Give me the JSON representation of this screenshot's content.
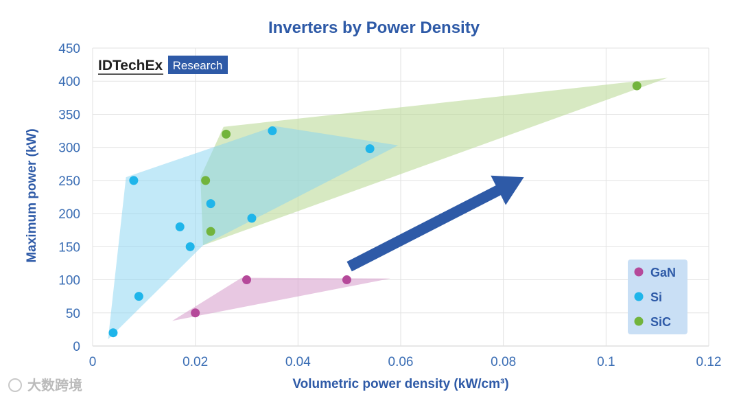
{
  "chart_data": {
    "type": "scatter",
    "title": "Inverters by Power Density",
    "xlabel": "Volumetric power density (kW/cm³)",
    "ylabel": "Maximum power (kW)",
    "xlim": [
      0,
      0.12
    ],
    "ylim": [
      0,
      450
    ],
    "x_ticks": [
      0,
      0.02,
      0.04,
      0.06,
      0.08,
      0.1,
      0.12
    ],
    "x_tick_labels": [
      "0",
      "0.02",
      "0.04",
      "0.06",
      "0.08",
      "0.1",
      "0.12"
    ],
    "y_ticks": [
      0,
      50,
      100,
      150,
      200,
      250,
      300,
      350,
      400,
      450
    ],
    "y_tick_labels": [
      "0",
      "50",
      "100",
      "150",
      "200",
      "250",
      "300",
      "350",
      "400",
      "450"
    ],
    "grid": true,
    "legend_position": "bottom-right",
    "series": [
      {
        "name": "GaN",
        "color": "#b5499a",
        "fill": "#d9a4cf",
        "points": [
          [
            0.02,
            50
          ],
          [
            0.03,
            100
          ],
          [
            0.0495,
            100
          ]
        ],
        "region": [
          [
            0.0155,
            38
          ],
          [
            0.029,
            103
          ],
          [
            0.058,
            102
          ]
        ]
      },
      {
        "name": "Si",
        "color": "#1fb5ea",
        "fill": "#86d4f2",
        "points": [
          [
            0.004,
            20
          ],
          [
            0.009,
            75
          ],
          [
            0.008,
            250
          ],
          [
            0.017,
            180
          ],
          [
            0.019,
            150
          ],
          [
            0.023,
            215
          ],
          [
            0.031,
            193
          ],
          [
            0.035,
            325
          ],
          [
            0.054,
            298
          ]
        ],
        "region": [
          [
            0.003,
            10
          ],
          [
            0.0065,
            255
          ],
          [
            0.0355,
            332
          ],
          [
            0.0595,
            303
          ],
          [
            0.0215,
            152
          ]
        ]
      },
      {
        "name": "SiC",
        "color": "#72b43c",
        "fill": "#bcdb9a",
        "points": [
          [
            0.026,
            320
          ],
          [
            0.022,
            250
          ],
          [
            0.023,
            173
          ],
          [
            0.106,
            393
          ]
        ],
        "region": [
          [
            0.0255,
            331
          ],
          [
            0.112,
            405
          ],
          [
            0.0215,
            152
          ],
          [
            0.021,
            255
          ]
        ]
      }
    ],
    "annotations": [
      {
        "type": "arrow",
        "from": [
          0.05,
          120
        ],
        "to": [
          0.084,
          255
        ],
        "color": "#2e5aa7"
      }
    ]
  },
  "brand": {
    "name": "IDTechEx",
    "badge": "Research"
  },
  "watermark": "大数跨境"
}
